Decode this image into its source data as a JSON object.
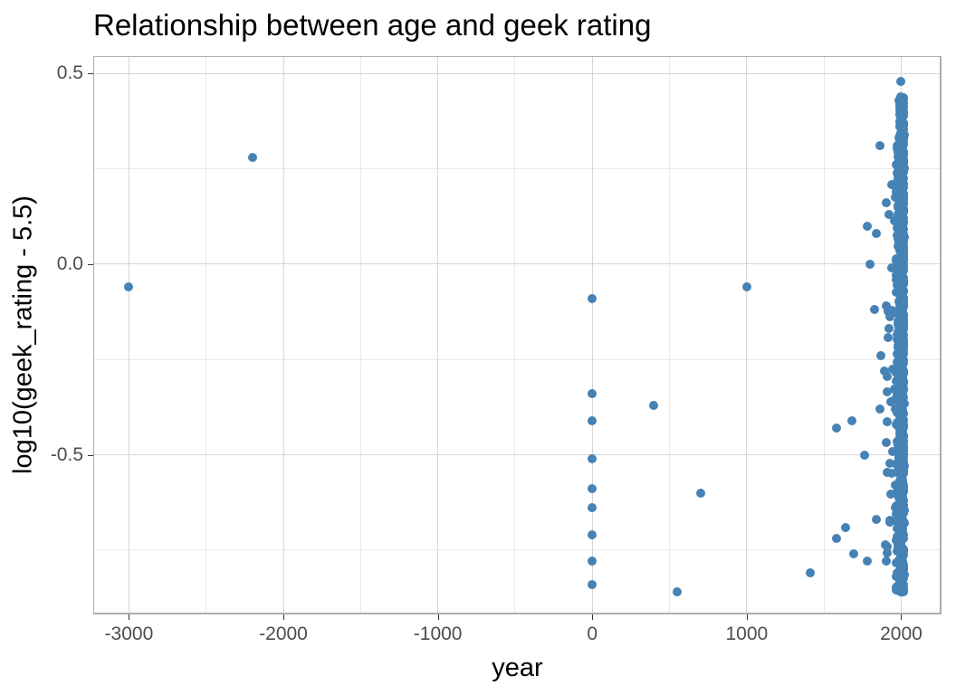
{
  "chart_data": {
    "type": "scatter",
    "title": "Relationship between age and geek rating",
    "xlabel": "year",
    "ylabel": "log10(geek_rating - 5.5)",
    "legend": "none",
    "grid": "major and minor light-gray gridlines on white panel with gray border",
    "x_axis": {
      "ticks": [
        -3000,
        -2000,
        -1000,
        0,
        1000,
        2000
      ],
      "tick_labels": [
        "-3000",
        "-2000",
        "-1000",
        "0",
        "1000",
        "2000"
      ],
      "minor_ticks": [
        -2500,
        -1500,
        -500,
        500,
        1500
      ],
      "limits": [
        -3231,
        2261
      ]
    },
    "y_axis": {
      "ticks": [
        0.5,
        0.0,
        -0.5
      ],
      "tick_labels": [
        "0.5",
        "0.0",
        "-0.5"
      ],
      "minor_ticks": [
        0.25,
        -0.25,
        -0.75
      ],
      "limits": [
        -0.919,
        0.546
      ]
    },
    "point_color": "#4682B4",
    "points": [
      [
        -3000,
        -0.06
      ],
      [
        -2200,
        0.28
      ],
      [
        0,
        -0.09
      ],
      [
        0,
        -0.34
      ],
      [
        0,
        -0.41
      ],
      [
        0,
        -0.51
      ],
      [
        0,
        -0.59
      ],
      [
        0,
        -0.64
      ],
      [
        0,
        -0.71
      ],
      [
        0,
        -0.78
      ],
      [
        0,
        -0.84
      ],
      [
        400,
        -0.37
      ],
      [
        550,
        -0.86
      ],
      [
        700,
        -0.6
      ],
      [
        1000,
        -0.06
      ],
      [
        1410,
        -0.81
      ],
      [
        1580,
        -0.43
      ],
      [
        1580,
        -0.72
      ],
      [
        1640,
        -0.69
      ],
      [
        1680,
        -0.41
      ],
      [
        1690,
        -0.76
      ],
      [
        1760,
        -0.5
      ],
      [
        1780,
        0.1
      ],
      [
        1780,
        -0.78
      ],
      [
        1800,
        0.0
      ],
      [
        1830,
        -0.12
      ],
      [
        1840,
        0.08
      ],
      [
        1840,
        -0.67
      ],
      [
        1860,
        0.31
      ],
      [
        1860,
        -0.38
      ],
      [
        1870,
        -0.24
      ],
      [
        1890,
        -0.28
      ],
      [
        1920,
        0.13
      ],
      [
        2000,
        0.48
      ]
    ],
    "dense_cluster": {
      "description": "solid vertical band of modern games near year 2000",
      "year_range": [
        1955,
        2018
      ],
      "value_range": [
        -0.86,
        0.44
      ],
      "count": 800,
      "top_taper": {
        "above_value": 0.32,
        "year_min": 1985
      },
      "edge_points": {
        "year_range": [
          1900,
          1952
        ],
        "value_range": [
          -0.82,
          0.33
        ],
        "count": 26
      }
    }
  },
  "colors": {
    "point": "#4682B4",
    "grid_major": "#d6d6d6",
    "grid_minor": "#e9e9e9",
    "panel_border": "#aeaeae",
    "tick": "#333333",
    "tick_label": "#4d4d4d",
    "text": "#000000",
    "background": "#ffffff"
  }
}
